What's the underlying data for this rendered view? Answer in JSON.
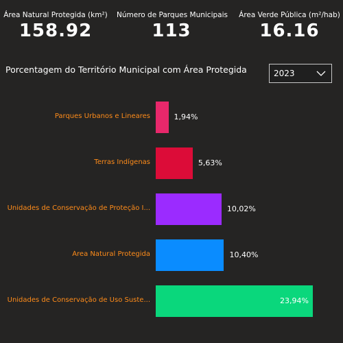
{
  "kpis": [
    {
      "label": "Área Natural Protegida (km²)",
      "value": "158.92"
    },
    {
      "label": "Número de Parques Municipais",
      "value": "113"
    },
    {
      "label": "Área Verde Pública (m²/hab)",
      "value": "16.16"
    }
  ],
  "filter": {
    "selected": "2023"
  },
  "chart_data": {
    "type": "bar",
    "orientation": "horizontal",
    "title": "Porcentagem do Território Municipal com Área Protegida",
    "categories": [
      "Parques Urbanos e Lineares",
      "Terras Indígenas",
      "Unidades de Conservação de Proteção I...",
      "Área Natural Protegida",
      "Unidades de Conservação de Uso Suste..."
    ],
    "values": [
      1.94,
      5.63,
      10.02,
      10.4,
      23.94
    ],
    "value_labels": [
      "1,94%",
      "5,63%",
      "10,02%",
      "10,40%",
      "23,94%"
    ],
    "colors": [
      "#e8286b",
      "#dc0c38",
      "#9b2bff",
      "#0a8cff",
      "#0ad77c"
    ],
    "xlim": [
      0,
      23.94
    ]
  }
}
